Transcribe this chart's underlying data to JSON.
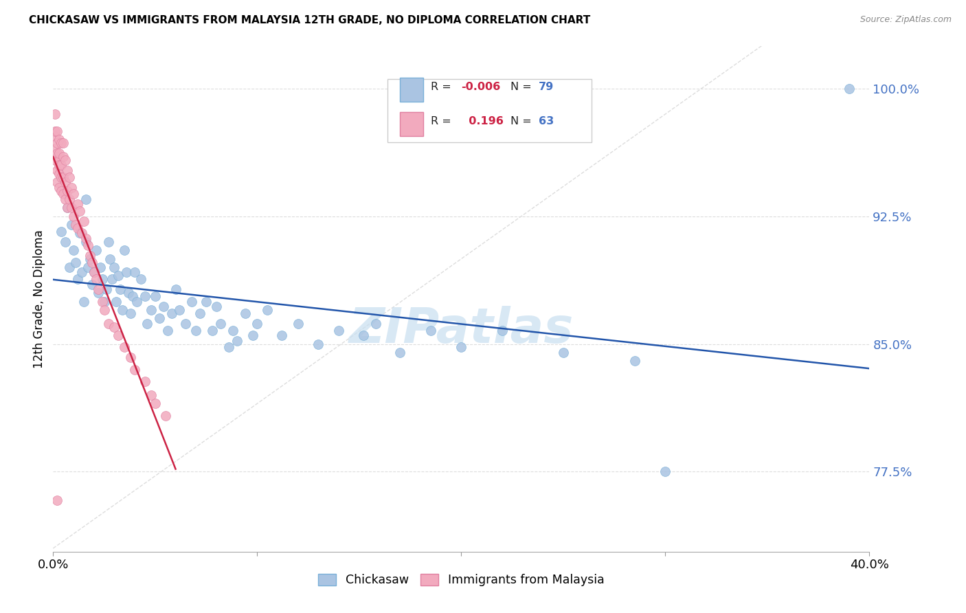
{
  "title": "CHICKASAW VS IMMIGRANTS FROM MALAYSIA 12TH GRADE, NO DIPLOMA CORRELATION CHART",
  "source": "Source: ZipAtlas.com",
  "ylabel": "12th Grade, No Diploma",
  "ytick_vals": [
    1.0,
    0.925,
    0.85,
    0.775
  ],
  "ytick_labels": [
    "100.0%",
    "92.5%",
    "85.0%",
    "77.5%"
  ],
  "xmin": 0.0,
  "xmax": 0.4,
  "ymin": 0.728,
  "ymax": 1.025,
  "blue_color": "#aac4e2",
  "pink_color": "#f2aabe",
  "trendline_blue_color": "#2255aa",
  "trendline_pink_color": "#cc2244",
  "diag_color": "#dddddd",
  "grid_color": "#dddddd",
  "watermark": "ZIPatlas",
  "watermark_color": "#c8dff0",
  "blue_points": [
    [
      0.004,
      0.916
    ],
    [
      0.006,
      0.91
    ],
    [
      0.007,
      0.93
    ],
    [
      0.008,
      0.895
    ],
    [
      0.009,
      0.92
    ],
    [
      0.01,
      0.905
    ],
    [
      0.011,
      0.898
    ],
    [
      0.012,
      0.888
    ],
    [
      0.013,
      0.915
    ],
    [
      0.014,
      0.892
    ],
    [
      0.015,
      0.875
    ],
    [
      0.016,
      0.935
    ],
    [
      0.016,
      0.91
    ],
    [
      0.017,
      0.895
    ],
    [
      0.018,
      0.9
    ],
    [
      0.019,
      0.885
    ],
    [
      0.02,
      0.892
    ],
    [
      0.021,
      0.905
    ],
    [
      0.022,
      0.88
    ],
    [
      0.023,
      0.895
    ],
    [
      0.024,
      0.888
    ],
    [
      0.025,
      0.875
    ],
    [
      0.026,
      0.882
    ],
    [
      0.027,
      0.91
    ],
    [
      0.028,
      0.9
    ],
    [
      0.029,
      0.888
    ],
    [
      0.03,
      0.895
    ],
    [
      0.031,
      0.875
    ],
    [
      0.032,
      0.89
    ],
    [
      0.033,
      0.882
    ],
    [
      0.034,
      0.87
    ],
    [
      0.035,
      0.905
    ],
    [
      0.036,
      0.892
    ],
    [
      0.037,
      0.88
    ],
    [
      0.038,
      0.868
    ],
    [
      0.039,
      0.878
    ],
    [
      0.04,
      0.892
    ],
    [
      0.041,
      0.875
    ],
    [
      0.043,
      0.888
    ],
    [
      0.045,
      0.878
    ],
    [
      0.046,
      0.862
    ],
    [
      0.048,
      0.87
    ],
    [
      0.05,
      0.878
    ],
    [
      0.052,
      0.865
    ],
    [
      0.054,
      0.872
    ],
    [
      0.056,
      0.858
    ],
    [
      0.058,
      0.868
    ],
    [
      0.06,
      0.882
    ],
    [
      0.062,
      0.87
    ],
    [
      0.065,
      0.862
    ],
    [
      0.068,
      0.875
    ],
    [
      0.07,
      0.858
    ],
    [
      0.072,
      0.868
    ],
    [
      0.075,
      0.875
    ],
    [
      0.078,
      0.858
    ],
    [
      0.08,
      0.872
    ],
    [
      0.082,
      0.862
    ],
    [
      0.086,
      0.848
    ],
    [
      0.088,
      0.858
    ],
    [
      0.09,
      0.852
    ],
    [
      0.094,
      0.868
    ],
    [
      0.098,
      0.855
    ],
    [
      0.1,
      0.862
    ],
    [
      0.105,
      0.87
    ],
    [
      0.112,
      0.855
    ],
    [
      0.12,
      0.862
    ],
    [
      0.13,
      0.85
    ],
    [
      0.14,
      0.858
    ],
    [
      0.152,
      0.855
    ],
    [
      0.158,
      0.862
    ],
    [
      0.17,
      0.845
    ],
    [
      0.185,
      0.858
    ],
    [
      0.2,
      0.848
    ],
    [
      0.22,
      0.858
    ],
    [
      0.25,
      0.845
    ],
    [
      0.285,
      0.84
    ],
    [
      0.3,
      0.775
    ],
    [
      0.39,
      1.0
    ]
  ],
  "pink_points": [
    [
      0.001,
      0.985
    ],
    [
      0.001,
      0.972
    ],
    [
      0.001,
      0.965
    ],
    [
      0.001,
      0.958
    ],
    [
      0.001,
      0.975
    ],
    [
      0.002,
      0.968
    ],
    [
      0.002,
      0.96
    ],
    [
      0.002,
      0.952
    ],
    [
      0.002,
      0.945
    ],
    [
      0.002,
      0.975
    ],
    [
      0.002,
      0.962
    ],
    [
      0.003,
      0.97
    ],
    [
      0.003,
      0.958
    ],
    [
      0.003,
      0.95
    ],
    [
      0.003,
      0.942
    ],
    [
      0.003,
      0.962
    ],
    [
      0.003,
      0.955
    ],
    [
      0.004,
      0.968
    ],
    [
      0.004,
      0.955
    ],
    [
      0.004,
      0.948
    ],
    [
      0.004,
      0.94
    ],
    [
      0.005,
      0.96
    ],
    [
      0.005,
      0.948
    ],
    [
      0.005,
      0.938
    ],
    [
      0.005,
      0.968
    ],
    [
      0.006,
      0.958
    ],
    [
      0.006,
      0.945
    ],
    [
      0.006,
      0.935
    ],
    [
      0.007,
      0.952
    ],
    [
      0.007,
      0.94
    ],
    [
      0.007,
      0.93
    ],
    [
      0.008,
      0.948
    ],
    [
      0.008,
      0.935
    ],
    [
      0.009,
      0.942
    ],
    [
      0.009,
      0.93
    ],
    [
      0.01,
      0.925
    ],
    [
      0.01,
      0.938
    ],
    [
      0.011,
      0.92
    ],
    [
      0.012,
      0.932
    ],
    [
      0.012,
      0.918
    ],
    [
      0.013,
      0.928
    ],
    [
      0.014,
      0.915
    ],
    [
      0.015,
      0.922
    ],
    [
      0.016,
      0.912
    ],
    [
      0.017,
      0.908
    ],
    [
      0.018,
      0.902
    ],
    [
      0.019,
      0.898
    ],
    [
      0.02,
      0.892
    ],
    [
      0.021,
      0.888
    ],
    [
      0.022,
      0.882
    ],
    [
      0.024,
      0.875
    ],
    [
      0.025,
      0.87
    ],
    [
      0.027,
      0.862
    ],
    [
      0.03,
      0.86
    ],
    [
      0.032,
      0.855
    ],
    [
      0.035,
      0.848
    ],
    [
      0.038,
      0.842
    ],
    [
      0.04,
      0.835
    ],
    [
      0.045,
      0.828
    ],
    [
      0.048,
      0.82
    ],
    [
      0.05,
      0.815
    ],
    [
      0.055,
      0.808
    ],
    [
      0.002,
      0.758
    ]
  ]
}
